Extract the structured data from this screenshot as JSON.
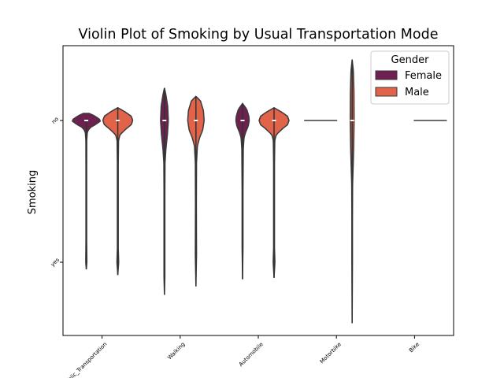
{
  "chart_data": {
    "type": "violin",
    "title": "Violin Plot of Smoking by Usual Transportation Mode",
    "xlabel": "",
    "ylabel": "Smoking",
    "categories": [
      "Public_Transportation",
      "Walking",
      "Automobile",
      "Motorbike",
      "Bike"
    ],
    "y_categories": [
      "no",
      "yes"
    ],
    "legend": {
      "title": "Gender",
      "placement": "top-right",
      "entries": [
        {
          "name": "Female",
          "color": "#6e2150"
        },
        {
          "name": "Male",
          "color": "#e0634a"
        }
      ]
    },
    "series": [
      {
        "name": "Female",
        "color": "#6e2150",
        "violins": [
          {
            "category": "Public_Transportation",
            "y_min": -0.02,
            "y_max": 1.05,
            "median": 0,
            "profile": [
              [
                -0.05,
                0.2
              ],
              [
                -0.03,
                0.6
              ],
              [
                0.0,
                1.0
              ],
              [
                0.03,
                0.6
              ],
              [
                0.05,
                0.25
              ],
              [
                0.08,
                0.07
              ],
              [
                0.14,
                0.03
              ],
              [
                0.35,
                0.025
              ],
              [
                0.6,
                0.025
              ],
              [
                0.85,
                0.025
              ],
              [
                1.0,
                0.04
              ],
              [
                1.05,
                0.0
              ]
            ]
          },
          {
            "category": "Walking",
            "y_min": -0.23,
            "y_max": 1.23,
            "median": 0,
            "profile": [
              [
                -0.23,
                0.0
              ],
              [
                -0.18,
                0.1
              ],
              [
                -0.1,
                0.22
              ],
              [
                0.0,
                0.26
              ],
              [
                0.1,
                0.2
              ],
              [
                0.2,
                0.1
              ],
              [
                0.3,
                0.04
              ],
              [
                0.5,
                0.03
              ],
              [
                0.8,
                0.03
              ],
              [
                1.1,
                0.03
              ],
              [
                1.23,
                0.0
              ]
            ]
          },
          {
            "category": "Automobile",
            "y_min": -0.12,
            "y_max": 1.12,
            "median": 0,
            "profile": [
              [
                -0.12,
                0.0
              ],
              [
                -0.08,
                0.28
              ],
              [
                -0.03,
                0.42
              ],
              [
                0.0,
                0.45
              ],
              [
                0.04,
                0.38
              ],
              [
                0.08,
                0.22
              ],
              [
                0.12,
                0.1
              ],
              [
                0.2,
                0.05
              ],
              [
                0.5,
                0.03
              ],
              [
                0.9,
                0.03
              ],
              [
                1.12,
                0.0
              ]
            ]
          }
        ]
      },
      {
        "name": "Male",
        "color": "#e0634a",
        "violins": [
          {
            "category": "Public_Transportation",
            "y_min": -0.09,
            "y_max": 1.09,
            "median": 0,
            "profile": [
              [
                -0.09,
                0.0
              ],
              [
                -0.06,
                0.5
              ],
              [
                -0.03,
                0.9
              ],
              [
                0.0,
                1.0
              ],
              [
                0.03,
                0.9
              ],
              [
                0.06,
                0.55
              ],
              [
                0.1,
                0.15
              ],
              [
                0.14,
                0.05
              ],
              [
                0.3,
                0.03
              ],
              [
                0.9,
                0.03
              ],
              [
                1.0,
                0.06
              ],
              [
                1.09,
                0.0
              ]
            ]
          },
          {
            "category": "Walking",
            "y_min": -0.17,
            "y_max": 1.17,
            "median": 0,
            "profile": [
              [
                -0.17,
                0.0
              ],
              [
                -0.14,
                0.3
              ],
              [
                -0.07,
                0.5
              ],
              [
                0.0,
                0.55
              ],
              [
                0.07,
                0.45
              ],
              [
                0.12,
                0.25
              ],
              [
                0.18,
                0.1
              ],
              [
                0.3,
                0.04
              ],
              [
                0.6,
                0.03
              ],
              [
                0.95,
                0.04
              ],
              [
                1.17,
                0.0
              ]
            ]
          },
          {
            "category": "Automobile",
            "y_min": -0.09,
            "y_max": 1.11,
            "median": 0,
            "profile": [
              [
                -0.09,
                0.0
              ],
              [
                -0.06,
                0.5
              ],
              [
                -0.03,
                0.9
              ],
              [
                0.0,
                1.0
              ],
              [
                0.03,
                0.9
              ],
              [
                0.06,
                0.55
              ],
              [
                0.1,
                0.15
              ],
              [
                0.14,
                0.05
              ],
              [
                0.3,
                0.03
              ],
              [
                0.9,
                0.03
              ],
              [
                1.0,
                0.06
              ],
              [
                1.11,
                0.0
              ]
            ]
          },
          {
            "category": "Motorbike",
            "y_min": -0.43,
            "y_max": 1.43,
            "median": 0,
            "profile": [
              [
                -0.43,
                0.0
              ],
              [
                -0.35,
                0.08
              ],
              [
                -0.2,
                0.12
              ],
              [
                0.0,
                0.13
              ],
              [
                0.2,
                0.1
              ],
              [
                0.35,
                0.06
              ],
              [
                0.45,
                0.03
              ],
              [
                0.7,
                0.02
              ],
              [
                1.0,
                0.02
              ],
              [
                1.43,
                0.0
              ]
            ]
          }
        ]
      }
    ],
    "degenerate": [
      {
        "category": "Motorbike",
        "gender": "Female",
        "value": 0
      },
      {
        "category": "Bike",
        "gender": "Male",
        "value": 0
      }
    ],
    "grid": false
  }
}
